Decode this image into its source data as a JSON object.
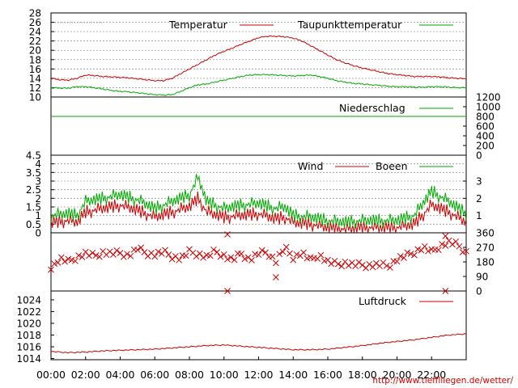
{
  "chart_data": [
    {
      "type": "line",
      "panel": "temperature",
      "ylim": [
        10,
        28
      ],
      "yticks": [
        10,
        12,
        14,
        16,
        18,
        20,
        22,
        24,
        26,
        28
      ],
      "grid": true,
      "legend_placement": "top",
      "series": [
        {
          "name": "Temperatur",
          "color": "#cc0000",
          "x_hours": [
            0,
            0.5,
            1,
            1.5,
            2,
            2.5,
            3,
            3.5,
            4,
            4.5,
            5,
            5.5,
            6,
            6.5,
            7,
            7.5,
            8,
            8.5,
            9,
            9.5,
            10,
            10.5,
            11,
            11.5,
            12,
            12.5,
            13,
            13.5,
            14,
            14.5,
            15,
            15.5,
            16,
            16.5,
            17,
            17.5,
            18,
            18.5,
            19,
            19.5,
            20,
            20.5,
            21,
            21.5,
            22,
            22.5,
            23,
            23.5,
            24
          ],
          "values": [
            14,
            13.7,
            13.6,
            14,
            14.7,
            14.6,
            14.4,
            14.3,
            14.2,
            14.1,
            13.9,
            13.7,
            13.5,
            13.5,
            14,
            15,
            16,
            17,
            18,
            19,
            19.8,
            20.5,
            21.3,
            22,
            22.7,
            23,
            23,
            22.9,
            22.6,
            22,
            21,
            20,
            19,
            18,
            17.3,
            16.7,
            16.2,
            15.8,
            15.4,
            15,
            14.8,
            14.6,
            14.4,
            14.4,
            14.4,
            14.3,
            14.1,
            14,
            13.9
          ]
        },
        {
          "name": "Taupunkttemperatur",
          "color": "#00aa00",
          "x_hours": [
            0,
            0.5,
            1,
            1.5,
            2,
            2.5,
            3,
            3.5,
            4,
            4.5,
            5,
            5.5,
            6,
            6.5,
            7,
            7.5,
            8,
            8.5,
            9,
            9.5,
            10,
            10.5,
            11,
            11.5,
            12,
            12.5,
            13,
            13.5,
            14,
            14.5,
            15,
            15.5,
            16,
            16.5,
            17,
            17.5,
            18,
            18.5,
            19,
            19.5,
            20,
            20.5,
            21,
            21.5,
            22,
            22.5,
            23,
            23.5,
            24
          ],
          "values": [
            12,
            11.9,
            11.9,
            12.2,
            12.2,
            12,
            11.7,
            11.4,
            11.2,
            11.1,
            10.9,
            10.7,
            10.5,
            10.4,
            10.5,
            11.2,
            12,
            12.6,
            12.8,
            13.2,
            13.6,
            14,
            14.4,
            14.7,
            14.8,
            14.8,
            14.7,
            14.6,
            14.5,
            14.6,
            14.7,
            14.4,
            14,
            13.5,
            13.2,
            12.9,
            12.8,
            12.6,
            12.5,
            12.3,
            12.2,
            12.2,
            12.1,
            12.1,
            12.2,
            12.2,
            12.1,
            12,
            12
          ]
        }
      ]
    },
    {
      "type": "line",
      "panel": "precipitation",
      "ylim": [
        0,
        1200
      ],
      "yticks": [
        0,
        200,
        400,
        600,
        800,
        1000,
        1200
      ],
      "series": [
        {
          "name": "Niederschlag",
          "color": "#00aa00",
          "constant_value": 800
        }
      ]
    },
    {
      "type": "line",
      "panel": "wind",
      "ylim": [
        0,
        4.5
      ],
      "yticks": [
        0,
        0.5,
        1,
        1.5,
        2,
        2.5,
        3,
        3.5,
        4,
        4.5
      ],
      "right_ticks": [
        1,
        2,
        3
      ],
      "grid": true,
      "noise": [
        0.6,
        -0.4,
        0.9,
        -0.7,
        0.3,
        -0.2,
        0.8,
        -0.9,
        0.5,
        -0.3,
        0.1,
        -0.6,
        0.7,
        -0.1,
        0.4,
        -0.8,
        0.2,
        -0.5,
        0.9,
        -0.4
      ],
      "series": [
        {
          "name": "Wind",
          "color": "#cc0000",
          "x_hours": [
            0,
            1,
            1.5,
            2,
            3,
            4,
            5,
            6,
            7,
            8,
            8.5,
            9,
            10,
            11,
            12,
            13,
            13.5,
            14,
            15,
            16,
            17,
            18,
            19,
            20,
            21,
            22,
            23,
            24
          ],
          "values": [
            0.6,
            0.7,
            0.6,
            1.2,
            1.4,
            1.6,
            1.3,
            0.9,
            1.2,
            1.5,
            2.0,
            1.2,
            0.9,
            1.0,
            1.1,
            0.8,
            0.9,
            0.6,
            0.5,
            0.3,
            0.2,
            0.3,
            0.3,
            0.3,
            0.5,
            1.6,
            1.2,
            0.6
          ]
        },
        {
          "name": "Boeen",
          "color": "#00aa00",
          "x_hours": [
            0,
            1,
            1.5,
            2,
            3,
            4,
            5,
            6,
            7,
            8,
            8.5,
            9,
            10,
            11,
            12,
            13,
            13.5,
            14,
            15,
            16,
            17,
            18,
            19,
            20,
            21,
            22,
            23,
            24
          ],
          "values": [
            1.0,
            1.1,
            1.0,
            1.8,
            2.0,
            2.2,
            1.9,
            1.4,
            1.8,
            2.2,
            3.2,
            1.8,
            1.4,
            1.6,
            1.7,
            1.4,
            1.5,
            1.0,
            0.9,
            0.7,
            0.6,
            0.7,
            0.7,
            0.7,
            1.0,
            2.4,
            1.8,
            1.1
          ]
        }
      ]
    },
    {
      "type": "scatter",
      "panel": "wind_direction",
      "ylim": [
        0,
        360
      ],
      "right_ticks": [
        0,
        90,
        180,
        270,
        360
      ],
      "marker": "x",
      "color": "#cc0000",
      "x_hours": [
        0.1,
        0.5,
        1,
        1.5,
        2,
        2.5,
        3,
        3.5,
        4,
        4.5,
        5,
        5.5,
        6,
        6.5,
        7,
        7.5,
        8,
        8.5,
        9,
        9.5,
        10,
        10.5,
        11,
        11.5,
        12,
        12.5,
        13,
        13.5,
        14,
        14.5,
        15,
        15.5,
        16,
        16.5,
        17,
        17.5,
        18,
        18.5,
        19,
        19.5,
        20,
        20.5,
        21,
        21.5,
        22,
        22.5,
        23,
        23.5,
        24
      ],
      "values": [
        150,
        200,
        180,
        210,
        230,
        215,
        240,
        230,
        235,
        220,
        260,
        235,
        225,
        240,
        215,
        200,
        240,
        230,
        210,
        245,
        220,
        190,
        230,
        195,
        230,
        240,
        185,
        265,
        210,
        235,
        190,
        225,
        180,
        165,
        175,
        160,
        160,
        160,
        160,
        155,
        195,
        215,
        240,
        270,
        240,
        280,
        300,
        285,
        240
      ],
      "outliers": [
        [
          10.2,
          0
        ],
        [
          22.8,
          0
        ],
        [
          10.2,
          350
        ],
        [
          22.8,
          340
        ],
        [
          13,
          85
        ]
      ]
    },
    {
      "type": "line",
      "panel": "pressure",
      "ylim": [
        1013.8,
        1025.5
      ],
      "yticks": [
        1014,
        1016,
        1018,
        1020,
        1022,
        1024
      ],
      "series": [
        {
          "name": "Luftdruck",
          "color": "#cc0000",
          "x_hours": [
            0,
            1,
            2,
            3,
            4,
            5,
            6,
            7,
            8,
            9,
            10,
            11,
            12,
            13,
            14,
            15,
            16,
            17,
            18,
            19,
            20,
            21,
            22,
            23,
            24
          ],
          "values": [
            1015.2,
            1015.0,
            1015.1,
            1015.3,
            1015.4,
            1015.5,
            1015.6,
            1015.8,
            1016.0,
            1016.2,
            1016.3,
            1016.1,
            1015.9,
            1015.7,
            1015.5,
            1015.5,
            1015.6,
            1015.9,
            1016.2,
            1016.6,
            1016.9,
            1017.2,
            1017.6,
            1018.0,
            1018.2
          ]
        }
      ]
    }
  ],
  "x_axis": {
    "ticks": [
      "00:00",
      "02:00",
      "04:00",
      "06:00",
      "08:00",
      "10:00",
      "12:00",
      "14:00",
      "16:00",
      "18:00",
      "20:00",
      "22:00"
    ],
    "range_hours": [
      0,
      24
    ]
  },
  "footer": {
    "url": "http://www.tiefflliegen.de/wetter/"
  }
}
